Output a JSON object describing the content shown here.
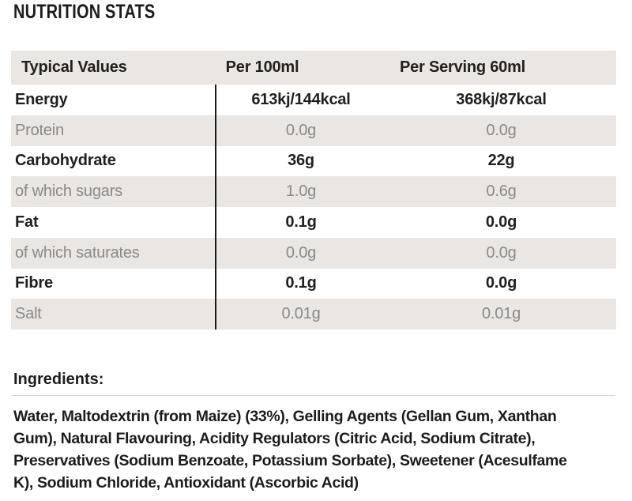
{
  "title": "NUTRITION STATS",
  "nutrition_table": {
    "columns": [
      "Typical Values",
      "Per 100ml",
      "Per Serving 60ml"
    ],
    "rows": [
      {
        "label": "Energy",
        "per_100ml": "613kj/144kcal",
        "per_serving_60ml": "368kj/87kcal"
      },
      {
        "label": "Protein",
        "per_100ml": "0.0g",
        "per_serving_60ml": "0.0g"
      },
      {
        "label": "Carbohydrate",
        "per_100ml": "36g",
        "per_serving_60ml": "22g"
      },
      {
        "label": "of which sugars",
        "per_100ml": "1.0g",
        "per_serving_60ml": "0.6g"
      },
      {
        "label": "Fat",
        "per_100ml": "0.1g",
        "per_serving_60ml": "0.0g"
      },
      {
        "label": "of which saturates",
        "per_100ml": "0.0g",
        "per_serving_60ml": "0.0g"
      },
      {
        "label": "Fibre",
        "per_100ml": "0.1g",
        "per_serving_60ml": "0.0g"
      },
      {
        "label": "Salt",
        "per_100ml": "0.01g",
        "per_serving_60ml": "0.01g"
      }
    ]
  },
  "ingredients": {
    "heading": "Ingredients:",
    "lines": [
      "Water, Maltodextrin (from Maize) (33%), Gelling Agents (Gellan Gum, Xanthan",
      "Gum), Natural Flavouring, Acidity Regulators (Citric Acid, Sodium Citrate),",
      "Preservatives (Sodium Benzoate, Potassium Sorbate), Sweetener (Acesulfame",
      "K), Sodium Chloride, Antioxidant (Ascorbic Acid)"
    ]
  },
  "colors": {
    "text_dark": "#1d1c1a",
    "text_gray": "#8a8a8a",
    "band_gray": "#e9e6e3",
    "divider_gray": "#d9d7d4",
    "vertical_rule": "#1a1a19",
    "background": "#ffffff"
  }
}
